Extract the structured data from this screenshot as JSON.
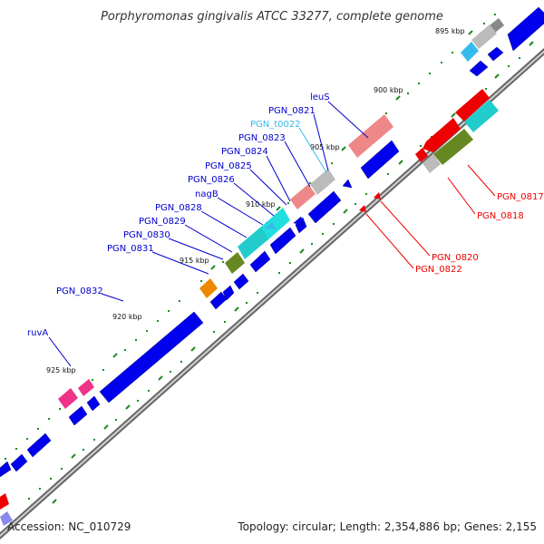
{
  "title": "Porphyromonas gingivalis ATCC 33277, complete genome",
  "footer": {
    "accession": "Accession: NC_010729",
    "summary": "Topology: circular; Length: 2,354,886 bp; Genes: 2,155"
  },
  "colors": {
    "backbone": "#888888",
    "forward_cds": "#0000ee",
    "reverse_label": "#ee0000",
    "forward_label": "#0000cc",
    "trna_label": "#33bbee",
    "tick": "#228822"
  },
  "ticks": [
    {
      "label": "895 kbp"
    },
    {
      "label": "900 kbp"
    },
    {
      "label": "905 kbp"
    },
    {
      "label": "910 kbp"
    },
    {
      "label": "915 kbp"
    },
    {
      "label": "920 kbp"
    },
    {
      "label": "925 kbp"
    }
  ],
  "gene_labels": [
    {
      "name": "leuS",
      "strand": "forward"
    },
    {
      "name": "PGN_0821",
      "strand": "forward"
    },
    {
      "name": "PGN_t0022",
      "strand": "trna"
    },
    {
      "name": "PGN_0823",
      "strand": "forward"
    },
    {
      "name": "PGN_0824",
      "strand": "forward"
    },
    {
      "name": "PGN_0825",
      "strand": "forward"
    },
    {
      "name": "PGN_0826",
      "strand": "forward"
    },
    {
      "name": "nagB",
      "strand": "forward"
    },
    {
      "name": "PGN_0828",
      "strand": "forward"
    },
    {
      "name": "PGN_0829",
      "strand": "forward"
    },
    {
      "name": "PGN_0830",
      "strand": "forward"
    },
    {
      "name": "PGN_0831",
      "strand": "forward"
    },
    {
      "name": "PGN_0832",
      "strand": "forward"
    },
    {
      "name": "ruvA",
      "strand": "forward"
    },
    {
      "name": "PGN_0817",
      "strand": "reverse"
    },
    {
      "name": "PGN_0818",
      "strand": "reverse"
    },
    {
      "name": "PGN_0820",
      "strand": "reverse"
    },
    {
      "name": "PGN_0822",
      "strand": "reverse"
    }
  ]
}
